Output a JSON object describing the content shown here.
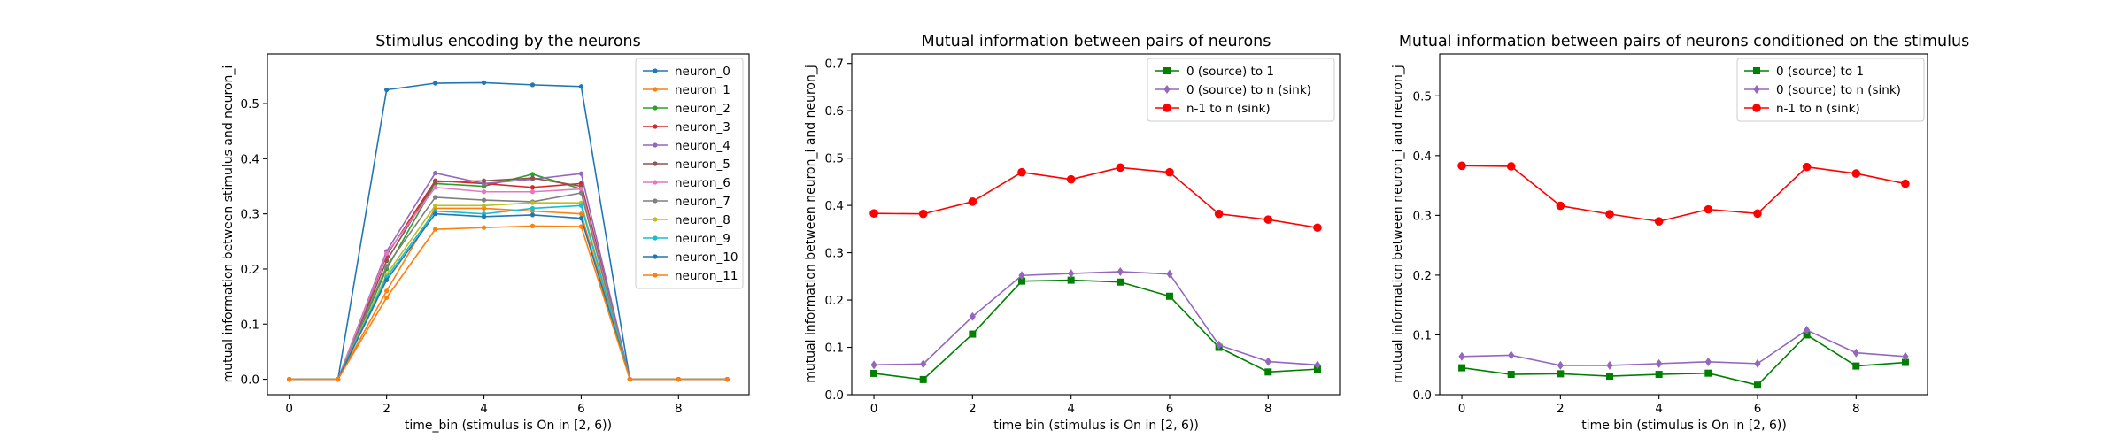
{
  "chart_data": [
    {
      "type": "line",
      "title": "Stimulus encoding by the neurons",
      "xlabel": "time_bin (stimulus is On in [2, 6))",
      "ylabel": "mutual information between stimulus and neuron_i",
      "xlim": [
        -0.45,
        9.45
      ],
      "ylim": [
        -0.028,
        0.59
      ],
      "xticks": [
        0,
        2,
        4,
        6,
        8
      ],
      "yticks": [
        0.0,
        0.1,
        0.2,
        0.3,
        0.4,
        0.5
      ],
      "ytick_decimals": 1,
      "legend": "top-right",
      "grid": false,
      "x": [
        0,
        1,
        2,
        3,
        4,
        5,
        6,
        7,
        8,
        9
      ],
      "series": [
        {
          "name": "neuron_0",
          "color": "#1f77b4",
          "marker": "dot",
          "values": [
            0,
            0,
            0.525,
            0.537,
            0.538,
            0.534,
            0.531,
            0,
            0,
            0
          ]
        },
        {
          "name": "neuron_1",
          "color": "#ff7f0e",
          "marker": "dot",
          "values": [
            0,
            0,
            0.16,
            0.31,
            0.31,
            0.305,
            0.3,
            0,
            0,
            0
          ]
        },
        {
          "name": "neuron_2",
          "color": "#2ca02c",
          "marker": "dot",
          "values": [
            0,
            0,
            0.2,
            0.355,
            0.35,
            0.372,
            0.345,
            0,
            0,
            0
          ]
        },
        {
          "name": "neuron_3",
          "color": "#d62728",
          "marker": "dot",
          "values": [
            0,
            0,
            0.225,
            0.36,
            0.355,
            0.348,
            0.355,
            0,
            0,
            0
          ]
        },
        {
          "name": "neuron_4",
          "color": "#9467bd",
          "marker": "dot",
          "values": [
            0,
            0,
            0.232,
            0.374,
            0.355,
            0.363,
            0.373,
            0,
            0,
            0
          ]
        },
        {
          "name": "neuron_5",
          "color": "#8c564b",
          "marker": "dot",
          "values": [
            0,
            0,
            0.215,
            0.358,
            0.36,
            0.365,
            0.35,
            0,
            0,
            0
          ]
        },
        {
          "name": "neuron_6",
          "color": "#e377c2",
          "marker": "dot",
          "values": [
            0,
            0,
            0.228,
            0.348,
            0.34,
            0.34,
            0.345,
            0,
            0,
            0
          ]
        },
        {
          "name": "neuron_7",
          "color": "#7f7f7f",
          "marker": "dot",
          "values": [
            0,
            0,
            0.205,
            0.33,
            0.325,
            0.322,
            0.338,
            0,
            0,
            0
          ]
        },
        {
          "name": "neuron_8",
          "color": "#bcbd22",
          "marker": "dot",
          "values": [
            0,
            0,
            0.19,
            0.315,
            0.315,
            0.32,
            0.32,
            0,
            0,
            0
          ]
        },
        {
          "name": "neuron_9",
          "color": "#17becf",
          "marker": "dot",
          "values": [
            0,
            0,
            0.185,
            0.305,
            0.3,
            0.31,
            0.315,
            0,
            0,
            0
          ]
        },
        {
          "name": "neuron_10",
          "color": "#1f77b4",
          "marker": "dot",
          "values": [
            0,
            0,
            0.18,
            0.3,
            0.295,
            0.298,
            0.292,
            0,
            0,
            0
          ]
        },
        {
          "name": "neuron_11",
          "color": "#ff7f0e",
          "marker": "dot",
          "values": [
            0,
            0,
            0.148,
            0.272,
            0.275,
            0.278,
            0.277,
            0,
            0,
            0
          ]
        }
      ]
    },
    {
      "type": "line",
      "title": "Mutual information between pairs of neurons",
      "xlabel": "time bin (stimulus is On in [2, 6))",
      "ylabel": "mutual information between neuron_i and neuron_j",
      "xlim": [
        -0.45,
        9.45
      ],
      "ylim": [
        0.0,
        0.72
      ],
      "xticks": [
        0,
        2,
        4,
        6,
        8
      ],
      "yticks": [
        0.0,
        0.1,
        0.2,
        0.3,
        0.4,
        0.5,
        0.6,
        0.7
      ],
      "ytick_decimals": 1,
      "legend": "top-right",
      "grid": false,
      "x": [
        0,
        1,
        2,
        3,
        4,
        5,
        6,
        7,
        8,
        9
      ],
      "series": [
        {
          "name": "0 (source) to 1",
          "color": "#008000",
          "marker": "square",
          "values": [
            0.045,
            0.032,
            0.128,
            0.24,
            0.242,
            0.238,
            0.208,
            0.1,
            0.048,
            0.054
          ]
        },
        {
          "name": "0 (source) to n (sink)",
          "color": "#9467bd",
          "marker": "diamond",
          "values": [
            0.063,
            0.065,
            0.165,
            0.252,
            0.256,
            0.26,
            0.255,
            0.105,
            0.07,
            0.063
          ]
        },
        {
          "name": "n-1 to n (sink)",
          "color": "#ff0000",
          "marker": "circle",
          "values": [
            0.383,
            0.382,
            0.408,
            0.47,
            0.455,
            0.48,
            0.47,
            0.382,
            0.37,
            0.353
          ]
        }
      ]
    },
    {
      "type": "line",
      "title": "Mutual information between pairs of neurons conditioned on the stimulus",
      "xlabel": "time bin (stimulus is On in [2, 6))",
      "ylabel": "mutual information between neuron_i and neuron_j",
      "xlim": [
        -0.45,
        9.45
      ],
      "ylim": [
        0.0,
        0.57
      ],
      "xticks": [
        0,
        2,
        4,
        6,
        8
      ],
      "yticks": [
        0.0,
        0.1,
        0.2,
        0.3,
        0.4,
        0.5
      ],
      "ytick_decimals": 1,
      "legend": "top-right",
      "grid": false,
      "x": [
        0,
        1,
        2,
        3,
        4,
        5,
        6,
        7,
        8,
        9
      ],
      "series": [
        {
          "name": "0 (source) to 1",
          "color": "#008000",
          "marker": "square",
          "values": [
            0.045,
            0.034,
            0.035,
            0.031,
            0.034,
            0.036,
            0.016,
            0.1,
            0.048,
            0.054
          ]
        },
        {
          "name": "0 (source) to n (sink)",
          "color": "#9467bd",
          "marker": "diamond",
          "values": [
            0.064,
            0.066,
            0.049,
            0.049,
            0.052,
            0.055,
            0.052,
            0.108,
            0.07,
            0.064
          ]
        },
        {
          "name": "n-1 to n (sink)",
          "color": "#ff0000",
          "marker": "circle",
          "values": [
            0.383,
            0.382,
            0.316,
            0.302,
            0.29,
            0.31,
            0.303,
            0.381,
            0.37,
            0.353
          ]
        }
      ]
    }
  ]
}
